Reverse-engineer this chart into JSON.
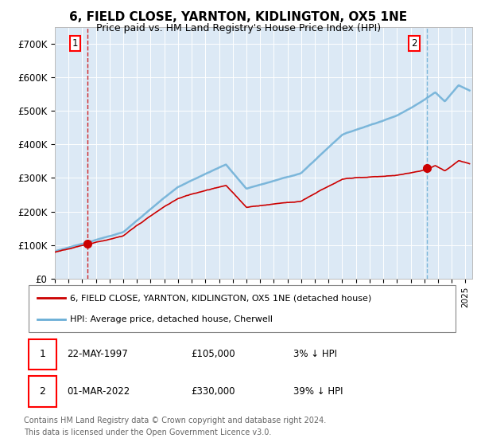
{
  "title": "6, FIELD CLOSE, YARNTON, KIDLINGTON, OX5 1NE",
  "subtitle": "Price paid vs. HM Land Registry's House Price Index (HPI)",
  "title_fontsize": 11,
  "subtitle_fontsize": 9.5,
  "ylim": [
    0,
    750000
  ],
  "yticks": [
    0,
    100000,
    200000,
    300000,
    400000,
    500000,
    600000,
    700000
  ],
  "ytick_labels": [
    "£0",
    "£100K",
    "£200K",
    "£300K",
    "£400K",
    "£500K",
    "£600K",
    "£700K"
  ],
  "background_color": "#dce9f5",
  "hpi_color": "#6aaed6",
  "price_color": "#cc0000",
  "vline1_color": "#cc0000",
  "vline2_color": "#6aaed6",
  "point1_x": 1997.38,
  "point1_price": 105000,
  "point1_date": "22-MAY-1997",
  "point1_label": "3% ↓ HPI",
  "point2_x": 2022.16,
  "point2_price": 330000,
  "point2_date": "01-MAR-2022",
  "point2_label": "39% ↓ HPI",
  "legend_label1": "6, FIELD CLOSE, YARNTON, KIDLINGTON, OX5 1NE (detached house)",
  "legend_label2": "HPI: Average price, detached house, Cherwell",
  "footer1": "Contains HM Land Registry data © Crown copyright and database right 2024.",
  "footer2": "This data is licensed under the Open Government Licence v3.0.",
  "xmin": 1995.0,
  "xmax": 2025.5
}
